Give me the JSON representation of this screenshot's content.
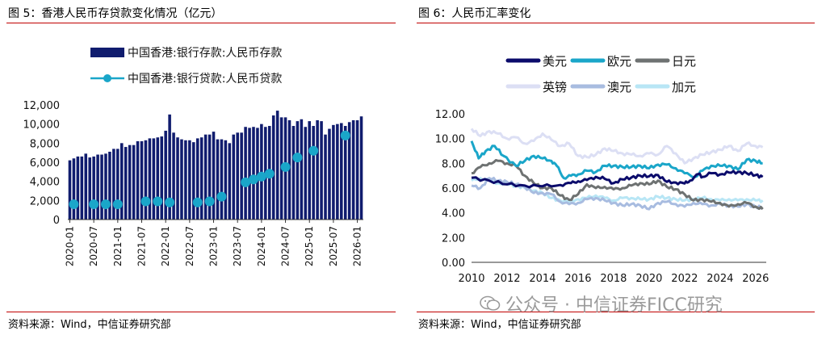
{
  "figures": [
    {
      "title": "图 5：香港人民币存贷款变化情况（亿元）",
      "source": "资料来源：Wind，中信证券研究部"
    },
    {
      "title": "图 6：人民币汇率变化",
      "source": "资料来源：Wind，中信证券研究部"
    }
  ],
  "watermark": "公众号 · 中信证券FICC研究",
  "chart_data": [
    {
      "type": "bar",
      "ylim": [
        0,
        12000
      ],
      "yticks": [
        "0",
        "2,000",
        "4,000",
        "6,000",
        "8,000",
        "10,000",
        "12,000"
      ],
      "xticks": [
        "2020-01",
        "2020-07",
        "2021-01",
        "2021-07",
        "2022-01",
        "2022-07",
        "2023-01",
        "2023-07",
        "2024-01",
        "2024-07",
        "2025-01",
        "2025-07",
        "2026-01"
      ],
      "legend": [
        "中国香港:银行存款:人民币存款",
        "中国香港:银行贷款:人民币贷款"
      ],
      "colors": {
        "deposit": "#101c6e",
        "loan": "#1aa6c9"
      },
      "series": [
        {
          "name": "中国香港:银行存款:人民币存款",
          "kind": "bar",
          "values": [
            6200,
            6400,
            6600,
            6600,
            6900,
            6500,
            6600,
            6800,
            6800,
            6900,
            7100,
            7400,
            7400,
            8000,
            7600,
            7800,
            7800,
            8200,
            8200,
            8300,
            8500,
            8500,
            8600,
            8700,
            9300,
            11000,
            9100,
            8600,
            8400,
            8300,
            8300,
            8100,
            8500,
            8600,
            8900,
            8900,
            9200,
            8400,
            8400,
            8300,
            8000,
            8900,
            9100,
            9100,
            9700,
            9600,
            9700,
            9600,
            10000,
            9700,
            9800,
            10900,
            11400,
            10700,
            10700,
            10400,
            9800,
            10300,
            10500,
            9700,
            10300,
            9800,
            10400,
            10300,
            8900,
            9500,
            9900,
            10000,
            10100,
            9800,
            10200,
            10400,
            10400,
            10800
          ]
        },
        {
          "name": "中国香港:银行贷款:人民币贷款",
          "kind": "scatter",
          "x": [
            1,
            6,
            9,
            12,
            19,
            22,
            25,
            32,
            35,
            38,
            44,
            46,
            48,
            50,
            54,
            57,
            61,
            69
          ],
          "values": [
            1600,
            1600,
            1600,
            1600,
            1900,
            1900,
            1800,
            1800,
            1900,
            2400,
            3900,
            4200,
            4500,
            4800,
            5500,
            6500,
            7200,
            8800
          ]
        }
      ]
    },
    {
      "type": "line",
      "ylim": [
        0,
        12
      ],
      "xlim": [
        2010,
        2026.6
      ],
      "yticks": [
        "0.00",
        "2.00",
        "4.00",
        "6.00",
        "8.00",
        "10.00",
        "12.00"
      ],
      "xticks": [
        "2010",
        "2012",
        "2014",
        "2016",
        "2018",
        "2020",
        "2022",
        "2024",
        "2026"
      ],
      "legend": [
        "美元",
        "欧元",
        "日元",
        "英镑",
        "澳元",
        "加元"
      ],
      "series": [
        {
          "name": "美元",
          "color": "#0b0b6b",
          "points": [
            [
              2010,
              6.83
            ],
            [
              2011,
              6.6
            ],
            [
              2012,
              6.3
            ],
            [
              2013,
              6.2
            ],
            [
              2014,
              6.15
            ],
            [
              2015,
              6.25
            ],
            [
              2015.6,
              6.4
            ],
            [
              2016,
              6.55
            ],
            [
              2016.5,
              6.65
            ],
            [
              2017,
              6.9
            ],
            [
              2017.5,
              6.75
            ],
            [
              2018,
              6.4
            ],
            [
              2018.5,
              6.7
            ],
            [
              2019,
              6.85
            ],
            [
              2019.5,
              7.0
            ],
            [
              2020,
              6.95
            ],
            [
              2020.5,
              7.05
            ],
            [
              2021,
              6.5
            ],
            [
              2021.5,
              6.45
            ],
            [
              2022,
              6.37
            ],
            [
              2022.3,
              6.6
            ],
            [
              2022.8,
              7.15
            ],
            [
              2023,
              6.9
            ],
            [
              2023.5,
              7.2
            ],
            [
              2024,
              7.1
            ],
            [
              2024.5,
              7.25
            ],
            [
              2025,
              7.3
            ],
            [
              2025.5,
              7.2
            ],
            [
              2026,
              7.05
            ],
            [
              2026.4,
              6.9
            ]
          ]
        },
        {
          "name": "欧元",
          "color": "#1aa6c9",
          "points": [
            [
              2010,
              9.8
            ],
            [
              2010.4,
              8.4
            ],
            [
              2010.8,
              9.0
            ],
            [
              2011.3,
              9.4
            ],
            [
              2011.8,
              8.6
            ],
            [
              2012.5,
              7.8
            ],
            [
              2013,
              8.2
            ],
            [
              2013.5,
              8.6
            ],
            [
              2014,
              8.4
            ],
            [
              2014.5,
              8.2
            ],
            [
              2014.8,
              7.8
            ],
            [
              2015.2,
              6.8
            ],
            [
              2015.6,
              7.0
            ],
            [
              2016,
              7.1
            ],
            [
              2016.5,
              7.4
            ],
            [
              2017,
              7.3
            ],
            [
              2017.5,
              7.8
            ],
            [
              2018,
              7.8
            ],
            [
              2018.5,
              7.7
            ],
            [
              2019,
              7.7
            ],
            [
              2019.5,
              7.8
            ],
            [
              2020,
              7.6
            ],
            [
              2020.5,
              7.9
            ],
            [
              2021,
              7.9
            ],
            [
              2021.5,
              7.6
            ],
            [
              2022,
              7.2
            ],
            [
              2022.6,
              6.9
            ],
            [
              2023,
              7.4
            ],
            [
              2023.5,
              7.8
            ],
            [
              2024,
              7.8
            ],
            [
              2024.5,
              7.8
            ],
            [
              2025,
              7.5
            ],
            [
              2025.5,
              8.3
            ],
            [
              2026,
              8.2
            ],
            [
              2026.4,
              8.0
            ]
          ]
        },
        {
          "name": "日元",
          "color": "#6e7272",
          "points": [
            [
              2010,
              7.2
            ],
            [
              2010.5,
              7.7
            ],
            [
              2011,
              8.0
            ],
            [
              2011.5,
              8.2
            ],
            [
              2012,
              8.0
            ],
            [
              2012.5,
              7.8
            ],
            [
              2013,
              7.0
            ],
            [
              2013.5,
              6.4
            ],
            [
              2014,
              6.0
            ],
            [
              2014.5,
              6.0
            ],
            [
              2015,
              5.4
            ],
            [
              2015.5,
              5.05
            ],
            [
              2016,
              5.5
            ],
            [
              2016.5,
              6.3
            ],
            [
              2017,
              6.0
            ],
            [
              2017.5,
              6.1
            ],
            [
              2018,
              5.9
            ],
            [
              2018.5,
              6.0
            ],
            [
              2019,
              6.2
            ],
            [
              2019.5,
              6.4
            ],
            [
              2020,
              6.3
            ],
            [
              2020.5,
              6.6
            ],
            [
              2021,
              6.1
            ],
            [
              2021.5,
              5.9
            ],
            [
              2022,
              5.5
            ],
            [
              2022.5,
              5.0
            ],
            [
              2023,
              5.1
            ],
            [
              2023.5,
              4.9
            ],
            [
              2024,
              4.8
            ],
            [
              2024.5,
              4.5
            ],
            [
              2025,
              4.7
            ],
            [
              2025.5,
              4.8
            ],
            [
              2026,
              4.5
            ],
            [
              2026.4,
              4.3
            ]
          ]
        },
        {
          "name": "英镑",
          "color": "#dcdff4",
          "points": [
            [
              2010,
              10.8
            ],
            [
              2010.5,
              10.2
            ],
            [
              2011,
              10.6
            ],
            [
              2011.5,
              10.4
            ],
            [
              2012,
              10.0
            ],
            [
              2012.5,
              10.1
            ],
            [
              2013,
              9.6
            ],
            [
              2013.5,
              9.8
            ],
            [
              2014,
              10.4
            ],
            [
              2014.5,
              9.9
            ],
            [
              2015,
              9.4
            ],
            [
              2015.5,
              9.6
            ],
            [
              2016,
              8.6
            ],
            [
              2016.5,
              8.5
            ],
            [
              2017,
              8.7
            ],
            [
              2017.5,
              9.2
            ],
            [
              2018,
              9.0
            ],
            [
              2018.5,
              8.8
            ],
            [
              2019,
              8.7
            ],
            [
              2019.5,
              8.6
            ],
            [
              2020,
              8.8
            ],
            [
              2020.5,
              8.7
            ],
            [
              2021,
              9.4
            ],
            [
              2021.5,
              8.8
            ],
            [
              2022,
              8.0
            ],
            [
              2022.5,
              8.4
            ],
            [
              2023,
              8.7
            ],
            [
              2023.5,
              8.9
            ],
            [
              2024,
              9.1
            ],
            [
              2024.5,
              9.4
            ],
            [
              2025,
              9.0
            ],
            [
              2025.5,
              9.6
            ],
            [
              2026,
              9.4
            ],
            [
              2026.4,
              9.3
            ]
          ]
        },
        {
          "name": "澳元",
          "color": "#a8bce0",
          "points": [
            [
              2010,
              6.2
            ],
            [
              2010.5,
              6.0
            ],
            [
              2011,
              6.8
            ],
            [
              2011.5,
              6.6
            ],
            [
              2012,
              6.5
            ],
            [
              2012.5,
              6.3
            ],
            [
              2013,
              6.1
            ],
            [
              2013.5,
              5.6
            ],
            [
              2014,
              5.6
            ],
            [
              2014.5,
              5.5
            ],
            [
              2015,
              4.9
            ],
            [
              2015.5,
              4.7
            ],
            [
              2016,
              4.8
            ],
            [
              2016.5,
              5.1
            ],
            [
              2017,
              5.2
            ],
            [
              2017.5,
              5.0
            ],
            [
              2018,
              4.8
            ],
            [
              2018.5,
              4.6
            ],
            [
              2019,
              4.7
            ],
            [
              2019.5,
              4.6
            ],
            [
              2020,
              4.3
            ],
            [
              2020.5,
              4.8
            ],
            [
              2021,
              4.9
            ],
            [
              2021.5,
              4.7
            ],
            [
              2022,
              4.5
            ],
            [
              2022.5,
              4.8
            ],
            [
              2023,
              4.7
            ],
            [
              2023.5,
              4.6
            ],
            [
              2024,
              4.7
            ],
            [
              2024.5,
              4.6
            ],
            [
              2025,
              4.5
            ],
            [
              2025.5,
              4.7
            ],
            [
              2026,
              4.5
            ],
            [
              2026.4,
              4.4
            ]
          ]
        },
        {
          "name": "加元",
          "color": "#b8e6f5",
          "points": [
            [
              2010,
              6.6
            ],
            [
              2010.5,
              6.8
            ],
            [
              2011,
              6.6
            ],
            [
              2011.5,
              6.4
            ],
            [
              2012,
              6.3
            ],
            [
              2012.5,
              6.2
            ],
            [
              2013,
              6.0
            ],
            [
              2013.5,
              5.8
            ],
            [
              2014,
              5.6
            ],
            [
              2014.5,
              5.2
            ],
            [
              2015,
              5.0
            ],
            [
              2015.5,
              4.9
            ],
            [
              2016,
              5.1
            ],
            [
              2016.5,
              5.2
            ],
            [
              2017,
              5.4
            ],
            [
              2017.5,
              5.2
            ],
            [
              2018,
              5.0
            ],
            [
              2018.5,
              5.2
            ],
            [
              2019,
              5.2
            ],
            [
              2019.5,
              5.1
            ],
            [
              2020,
              5.1
            ],
            [
              2020.5,
              5.3
            ],
            [
              2021,
              5.2
            ],
            [
              2021.5,
              5.1
            ],
            [
              2022,
              5.0
            ],
            [
              2022.5,
              5.1
            ],
            [
              2023,
              5.2
            ],
            [
              2023.5,
              5.1
            ],
            [
              2024,
              5.0
            ],
            [
              2024.5,
              5.1
            ],
            [
              2025,
              5.0
            ],
            [
              2025.5,
              5.1
            ],
            [
              2026,
              5.0
            ],
            [
              2026.4,
              5.0
            ]
          ]
        }
      ]
    }
  ]
}
